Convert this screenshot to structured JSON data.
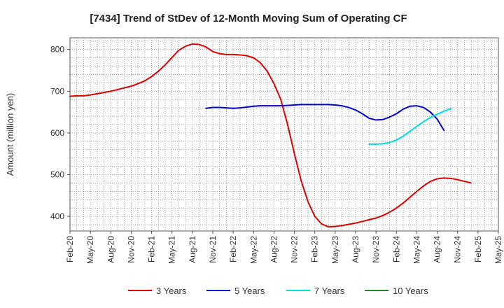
{
  "chart_data": {
    "type": "line",
    "title": "[7434]  Trend of StDev of 12-Month Moving Sum of Operating CF",
    "xlabel": "",
    "ylabel": "Amount (million yen)",
    "ylim": [
      365,
      828
    ],
    "y_ticks": [
      400,
      500,
      600,
      700,
      800
    ],
    "x_tick_labels": [
      "Feb-20",
      "May-20",
      "Aug-20",
      "Nov-20",
      "Feb-21",
      "May-21",
      "Aug-21",
      "Nov-21",
      "Feb-22",
      "May-22",
      "Aug-22",
      "Nov-22",
      "Feb-23",
      "May-23",
      "Aug-23",
      "Nov-23",
      "Feb-24",
      "May-24",
      "Aug-24",
      "Nov-24",
      "Feb-25",
      "May-25"
    ],
    "grid": true,
    "legend_position": "bottom",
    "series": [
      {
        "name": "3 Years",
        "color": "#dd0000",
        "start": "Feb-20",
        "values": [
          688,
          689,
          689,
          691,
          694,
          697,
          700,
          704,
          708,
          712,
          718,
          725,
          735,
          748,
          763,
          781,
          798,
          808,
          813,
          812,
          806,
          795,
          790,
          788,
          788,
          787,
          785,
          780,
          768,
          748,
          718,
          680,
          620,
          550,
          485,
          435,
          400,
          382,
          375,
          376,
          378,
          381,
          384,
          388,
          392,
          396,
          402,
          410,
          420,
          432,
          446,
          460,
          473,
          484,
          490,
          492,
          491,
          488,
          484,
          480
        ]
      },
      {
        "name": "5 Years",
        "color": "#0000cc",
        "start": "Feb-20",
        "values": [
          null,
          null,
          null,
          null,
          null,
          null,
          null,
          null,
          null,
          null,
          null,
          null,
          null,
          null,
          null,
          null,
          null,
          null,
          null,
          null,
          659,
          661,
          661,
          660,
          659,
          660,
          662,
          664,
          665,
          665,
          665,
          665,
          666,
          667,
          668,
          668,
          668,
          668,
          668,
          667,
          665,
          661,
          655,
          646,
          635,
          631,
          632,
          638,
          646,
          657,
          664,
          665,
          661,
          650,
          633,
          606
        ]
      },
      {
        "name": "7 Years",
        "color": "#00dddd",
        "start": "Feb-20",
        "values": [
          null,
          null,
          null,
          null,
          null,
          null,
          null,
          null,
          null,
          null,
          null,
          null,
          null,
          null,
          null,
          null,
          null,
          null,
          null,
          null,
          null,
          null,
          null,
          null,
          null,
          null,
          null,
          null,
          null,
          null,
          null,
          null,
          null,
          null,
          null,
          null,
          null,
          null,
          null,
          null,
          null,
          null,
          null,
          null,
          573,
          573,
          574,
          577,
          583,
          592,
          604,
          616,
          627,
          637,
          645,
          652,
          658
        ]
      },
      {
        "name": "10 Years",
        "color": "#228822",
        "start": "Feb-20",
        "values": []
      }
    ]
  }
}
